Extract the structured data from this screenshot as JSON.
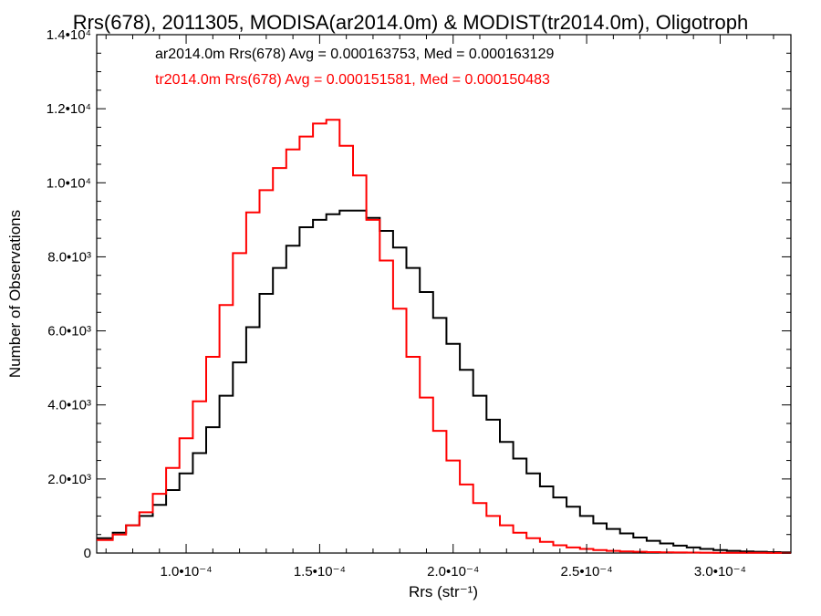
{
  "chart_data": {
    "type": "histogram",
    "title": "Rrs(678), 2011305, MODISA(ar2014.0m) & MODIST(tr2014.0m), Oligotroph",
    "xlabel": "Rrs (str⁻¹)",
    "ylabel": "Number of Observations",
    "xlim": [
      6.65e-05,
      0.0003265
    ],
    "ylim": [
      0,
      14000
    ],
    "x_ticks": [
      {
        "value": 0.0001,
        "label": "1.0•10⁻⁴"
      },
      {
        "value": 0.00015,
        "label": "1.5•10⁻⁴"
      },
      {
        "value": 0.0002,
        "label": "2.0•10⁻⁴"
      },
      {
        "value": 0.00025,
        "label": "2.5•10⁻⁴"
      },
      {
        "value": 0.0003,
        "label": "3.0•10⁻⁴"
      }
    ],
    "y_ticks": [
      {
        "value": 0,
        "label": "0"
      },
      {
        "value": 2000,
        "label": "2.0•10³"
      },
      {
        "value": 4000,
        "label": "4.0•10³"
      },
      {
        "value": 6000,
        "label": "6.0•10³"
      },
      {
        "value": 8000,
        "label": "8.0•10³"
      },
      {
        "value": 10000,
        "label": "1.0•10⁴"
      },
      {
        "value": 12000,
        "label": "1.2•10⁴"
      },
      {
        "value": 14000,
        "label": "1.4•10⁴"
      }
    ],
    "grid": false,
    "series": [
      {
        "annotation": "ar2014.0m Rrs(678) Avg = 0.000163753, Med = 0.000163129",
        "color": "#000000",
        "x": [
          7e-05,
          7.5e-05,
          8e-05,
          8.5e-05,
          9e-05,
          9.5e-05,
          0.0001,
          0.000105,
          0.00011,
          0.000115,
          0.00012,
          0.000125,
          0.00013,
          0.000135,
          0.00014,
          0.000145,
          0.00015,
          0.000155,
          0.00016,
          0.000165,
          0.00017,
          0.000175,
          0.00018,
          0.000185,
          0.00019,
          0.000195,
          0.0002,
          0.000205,
          0.00021,
          0.000215,
          0.00022,
          0.000225,
          0.00023,
          0.000235,
          0.00024,
          0.000245,
          0.00025,
          0.000255,
          0.00026,
          0.000265,
          0.00027,
          0.000275,
          0.00028,
          0.000285,
          0.00029,
          0.000295,
          0.0003,
          0.000305,
          0.00031,
          0.000315,
          0.00032,
          0.000325
        ],
        "y": [
          400,
          550,
          750,
          1000,
          1300,
          1700,
          2150,
          2700,
          3400,
          4250,
          5150,
          6100,
          7000,
          7700,
          8300,
          8800,
          9000,
          9150,
          9250,
          9250,
          9050,
          8700,
          8250,
          7700,
          7050,
          6350,
          5650,
          4950,
          4250,
          3600,
          3000,
          2550,
          2150,
          1800,
          1500,
          1250,
          1000,
          800,
          650,
          530,
          420,
          330,
          260,
          200,
          150,
          110,
          80,
          60,
          45,
          35,
          25,
          20
        ]
      },
      {
        "annotation": "tr2014.0m Rrs(678) Avg = 0.000151581, Med = 0.000150483",
        "color": "#ff0000",
        "x": [
          7e-05,
          7.5e-05,
          8e-05,
          8.5e-05,
          9e-05,
          9.5e-05,
          0.0001,
          0.000105,
          0.00011,
          0.000115,
          0.00012,
          0.000125,
          0.00013,
          0.000135,
          0.00014,
          0.000145,
          0.00015,
          0.000155,
          0.00016,
          0.000165,
          0.00017,
          0.000175,
          0.00018,
          0.000185,
          0.00019,
          0.000195,
          0.0002,
          0.000205,
          0.00021,
          0.000215,
          0.00022,
          0.000225,
          0.00023,
          0.000235,
          0.00024,
          0.000245,
          0.00025,
          0.000255,
          0.00026,
          0.000265,
          0.00027,
          0.000275,
          0.00028,
          0.000285,
          0.00029,
          0.000295,
          0.0003,
          0.000305,
          0.00031,
          0.000315,
          0.00032,
          0.000325
        ],
        "y": [
          350,
          500,
          750,
          1100,
          1600,
          2300,
          3100,
          4100,
          5300,
          6700,
          8100,
          9200,
          9800,
          10400,
          10900,
          11250,
          11600,
          11700,
          11000,
          10200,
          9000,
          7900,
          6600,
          5300,
          4200,
          3300,
          2500,
          1850,
          1350,
          1000,
          750,
          550,
          400,
          300,
          210,
          150,
          110,
          80,
          60,
          45,
          35,
          25,
          20,
          15,
          12,
          10,
          8,
          6,
          5,
          4,
          3,
          2
        ]
      }
    ]
  }
}
